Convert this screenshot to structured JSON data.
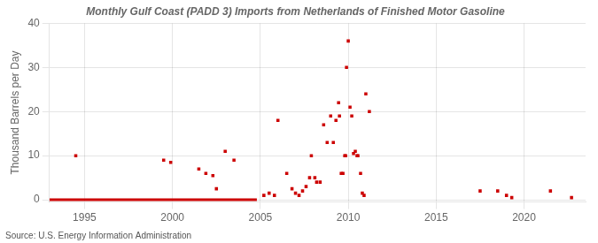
{
  "chart_data": {
    "type": "scatter",
    "title": "Monthly Gulf Coast (PADD 3) Imports from Netherlands of Finished Motor Gasoline",
    "ylabel": "Thousand Barrels per Day",
    "source": "Source: U.S. Energy Information Administration",
    "color": "#cc0000",
    "grid": true,
    "xlim": [
      1993.0,
      2023.5
    ],
    "ylim": [
      -0.5,
      40
    ],
    "xticks": [
      1995,
      2000,
      2005,
      2010,
      2015,
      2020
    ],
    "yticks": [
      0,
      10,
      20,
      30,
      40
    ],
    "series": [
      {
        "type": "scatter",
        "marker": "square",
        "x": [
          1994.5,
          1999.5,
          1999.9,
          2001.5,
          2001.9,
          2002.3,
          2002.5,
          2003.0,
          2003.5,
          2005.2,
          2005.5,
          2005.8,
          2006.0,
          2006.5,
          2006.8,
          2007.0,
          2007.2,
          2007.4,
          2007.6,
          2007.8,
          2007.9,
          2008.1,
          2008.2,
          2008.4,
          2008.6,
          2008.8,
          2009.0,
          2009.15,
          2009.3,
          2009.45,
          2009.5,
          2009.6,
          2009.7,
          2009.8,
          2009.85,
          2009.9,
          2010.0,
          2010.1,
          2010.2,
          2010.3,
          2010.4,
          2010.5,
          2010.55,
          2010.7,
          2010.8,
          2010.9,
          2011.0,
          2011.2,
          2017.5,
          2018.5,
          2019.0,
          2019.3,
          2021.5,
          2022.7
        ],
        "values": [
          10,
          9,
          8.5,
          7,
          6,
          5.5,
          2.5,
          11,
          9,
          1,
          1.5,
          1,
          18,
          6,
          2.5,
          1.5,
          1,
          2,
          3,
          5,
          10,
          5,
          4,
          4,
          17,
          13,
          19,
          13,
          18,
          22,
          19,
          6,
          6,
          10,
          10,
          30,
          36,
          21,
          19,
          10.5,
          11,
          10,
          10,
          6,
          1.5,
          1,
          24,
          20,
          2,
          2,
          1,
          0.5,
          2,
          0.5
        ]
      },
      {
        "type": "line",
        "line_style": "solid",
        "x": [
          1993.0,
          2004.8
        ],
        "values": [
          0,
          0
        ]
      }
    ]
  }
}
